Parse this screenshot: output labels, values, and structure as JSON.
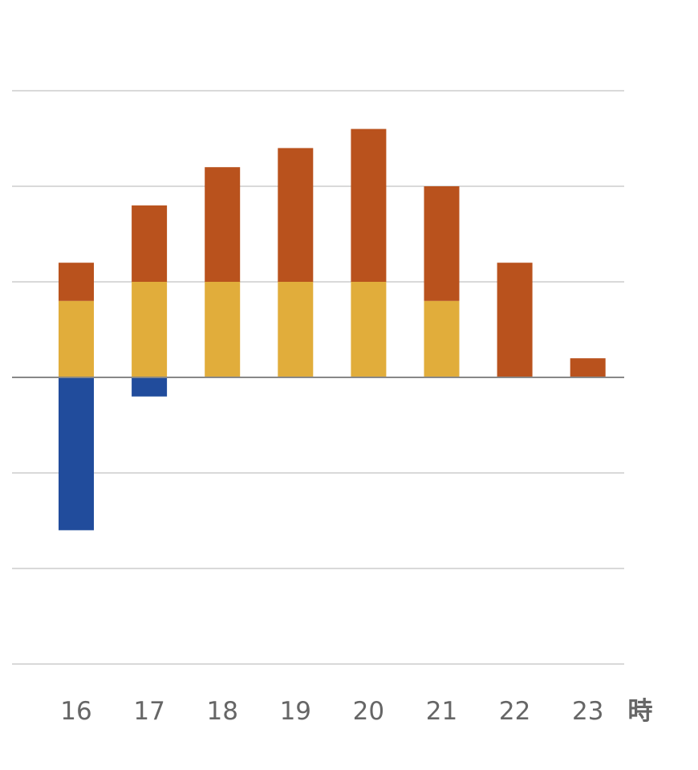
{
  "chart_data": {
    "type": "bar",
    "stacked": true,
    "categories": [
      "16",
      "17",
      "18",
      "19",
      "20",
      "21",
      "22",
      "23"
    ],
    "x_unit": "時",
    "series": [
      {
        "color": "#214C9C",
        "values": [
          -4,
          -0.5,
          0,
          0,
          0,
          0,
          0,
          0
        ]
      },
      {
        "color": "#E1AD3B",
        "values": [
          2,
          2.5,
          2.5,
          2.5,
          2.5,
          2,
          0,
          0
        ]
      },
      {
        "color": "#B9521D",
        "values": [
          1,
          2,
          3,
          3.5,
          4,
          3,
          3,
          0.5
        ]
      }
    ],
    "ylim": [
      -7.5,
      7.5
    ],
    "grid": true,
    "legend": "none",
    "colors": {
      "grid": "#D9D9D9",
      "axis": "#888888",
      "text": "#666666"
    }
  }
}
